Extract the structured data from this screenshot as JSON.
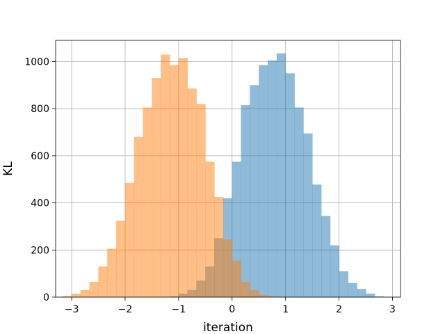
{
  "chart_data": {
    "type": "bar",
    "title": "",
    "xlabel": "iteration",
    "ylabel": "KL",
    "xlim": [
      -3.3,
      3.15
    ],
    "ylim": [
      0,
      1090
    ],
    "xticks": [
      -3,
      -2,
      -1,
      0,
      1,
      2,
      3
    ],
    "xtick_labels": [
      "−3",
      "−2",
      "−1",
      "0",
      "1",
      "2",
      "3"
    ],
    "yticks": [
      0,
      200,
      400,
      600,
      800,
      1000
    ],
    "ytick_labels": [
      "0",
      "200",
      "400",
      "600",
      "800",
      "1000"
    ],
    "grid": true,
    "bin_width": 0.167,
    "series": [
      {
        "color": "#1f77b4",
        "opacity": 0.5,
        "bin_start": -1.17,
        "values": [
          3,
          15,
          30,
          70,
          130,
          250,
          420,
          575,
          815,
          900,
          985,
          1005,
          1035,
          950,
          805,
          695,
          478,
          345,
          220,
          110,
          60,
          35,
          15,
          3
        ]
      },
      {
        "color": "#ff7f0e",
        "opacity": 0.5,
        "bin_start": -3.17,
        "values": [
          5,
          15,
          30,
          65,
          130,
          205,
          325,
          485,
          680,
          805,
          930,
          1030,
          985,
          1015,
          885,
          820,
          575,
          425,
          245,
          155,
          65,
          30,
          10,
          3
        ]
      }
    ]
  }
}
